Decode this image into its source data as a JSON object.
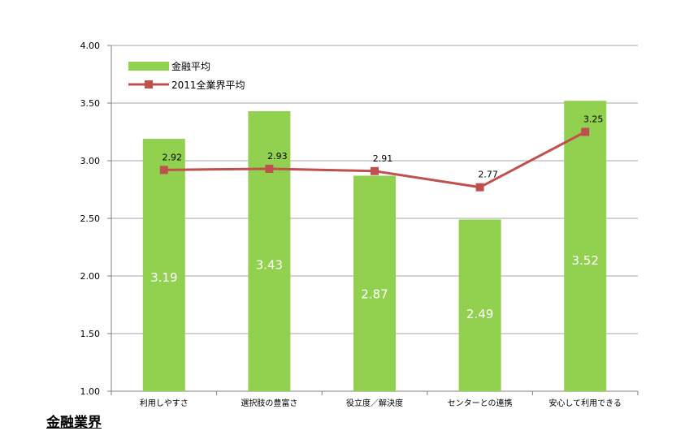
{
  "caption": "金融業界",
  "colors": {
    "bar": "#92D050",
    "line": "#C0504D",
    "grid": "#A6A6A6",
    "axis": "#808080"
  },
  "chart_data": {
    "type": "bar",
    "categories": [
      "利用しやすさ",
      "選択肢の豊富さ",
      "役立度／解決度",
      "センターとの連携",
      "安心して利用できる"
    ],
    "series": [
      {
        "name": "金融平均",
        "type": "bar",
        "values": [
          3.19,
          3.43,
          2.87,
          2.49,
          3.52
        ]
      },
      {
        "name": "2011全業界平均",
        "type": "line",
        "values": [
          2.92,
          2.93,
          2.91,
          2.77,
          3.25
        ]
      }
    ],
    "ylim": [
      1.0,
      4.0
    ],
    "yticks": [
      "1.00",
      "1.50",
      "2.00",
      "2.50",
      "3.00",
      "3.50",
      "4.00"
    ],
    "grid": true,
    "legend": "top-left"
  }
}
